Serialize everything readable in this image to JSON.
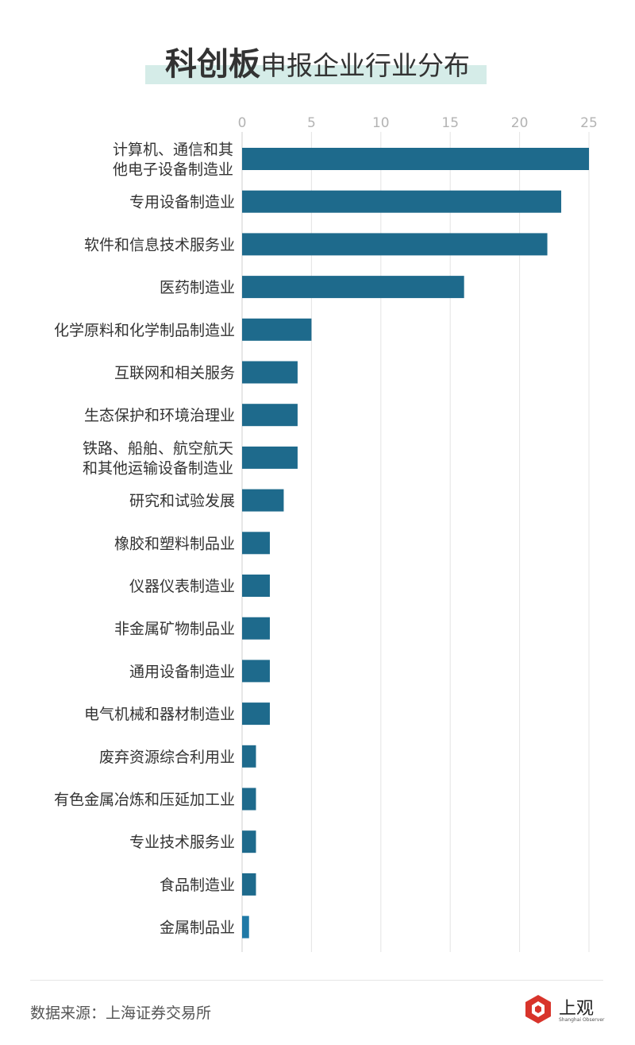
{
  "header": {
    "title_strong": "科创板",
    "title_rest": "申报企业行业分布"
  },
  "footer": {
    "source": "数据来源：上海证券交易所",
    "logo_cn": "上观",
    "logo_en": "Shanghai Observer"
  },
  "colors": {
    "bar": "#1e6a8c",
    "bar_last": "#1f79a6",
    "grid": "#e3e3e3",
    "tick": "#b3b3b3",
    "title_highlight": "#d5ece8",
    "logo_red": "#d8342b"
  },
  "chart_data": {
    "type": "bar",
    "orientation": "horizontal",
    "xlim": [
      0,
      25
    ],
    "ticks": [
      0,
      5,
      10,
      15,
      20,
      25
    ],
    "axis_position": "top",
    "grid": true,
    "categories": [
      "计算机、通信和其\n他电子设备制造业",
      "专用设备制造业",
      "软件和信息技术服务业",
      "医药制造业",
      "化学原料和化学制品制造业",
      "互联网和相关服务",
      "生态保护和环境治理业",
      "铁路、船舶、航空航天\n和其他运输设备制造业",
      "研究和试验发展",
      "橡胶和塑料制品业",
      "仪器仪表制造业",
      "非金属矿物制品业",
      "通用设备制造业",
      "电气机械和器材制造业",
      "废弃资源综合利用业",
      "有色金属冶炼和压延加工业",
      "专业技术服务业",
      "食品制造业",
      "金属制品业"
    ],
    "values": [
      25,
      23,
      22,
      16,
      5,
      4,
      4,
      4,
      3,
      2,
      2,
      2,
      2,
      2,
      1,
      1,
      1,
      1,
      0.5
    ]
  }
}
